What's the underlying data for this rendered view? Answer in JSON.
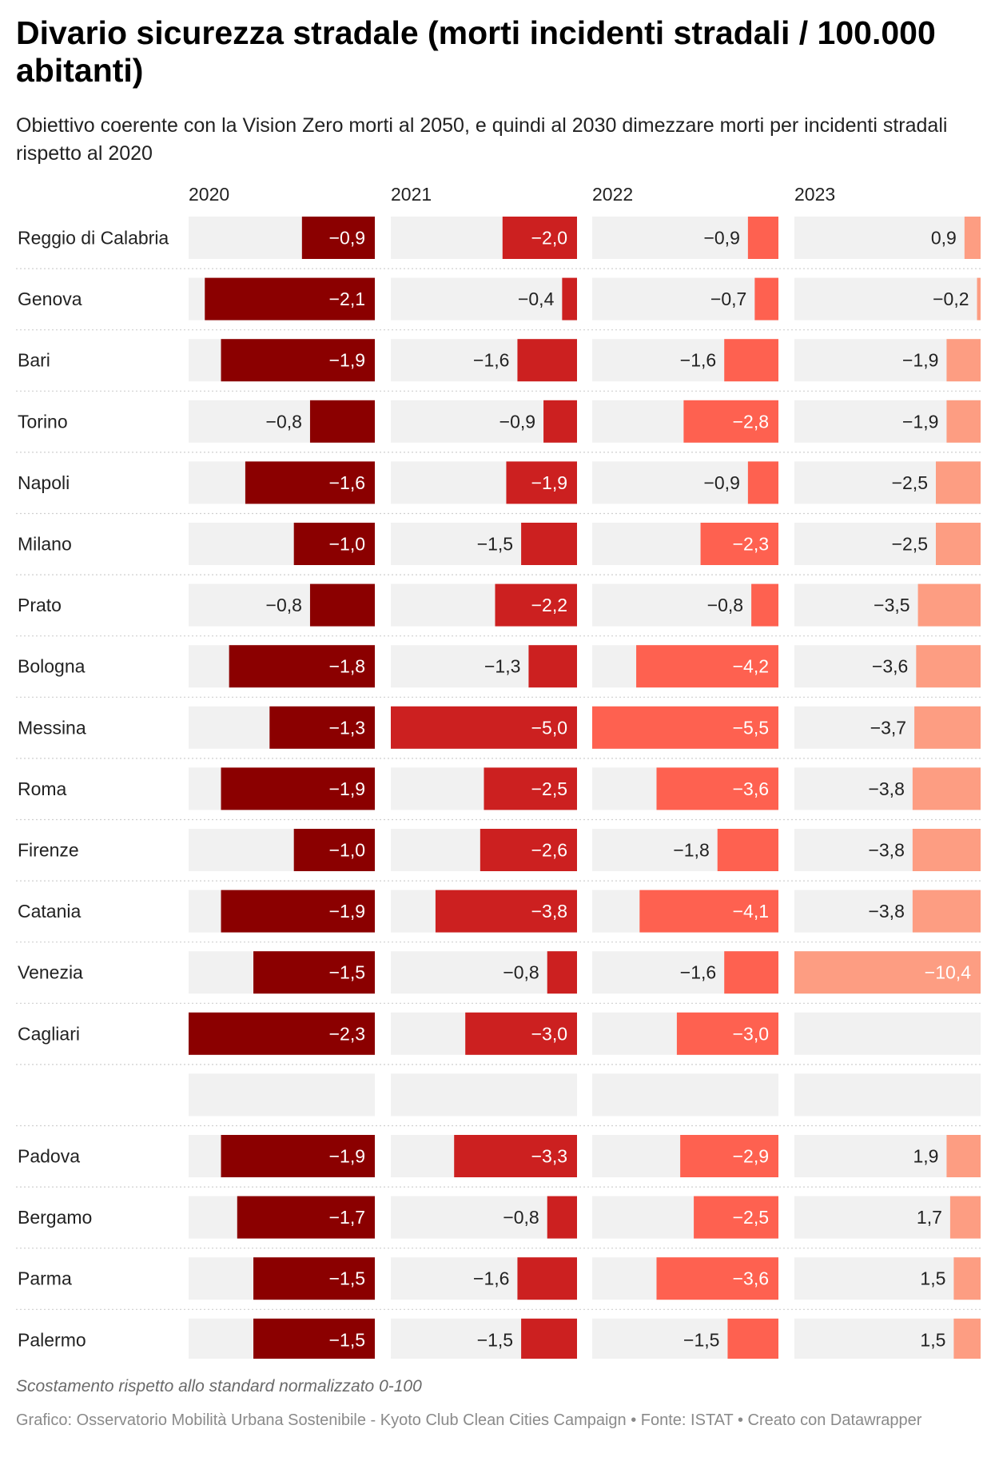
{
  "title": "Divario sicurezza stradale (morti incidenti stradali / 100.000 abitanti)",
  "subtitle": "Obiettivo coerente con la Vision Zero morti al 2050, e quindi al 2030 dimezzare morti per incidenti stradali rispetto al 2020",
  "notes": "Scostamento rispetto allo standard normalizzato 0-100",
  "footer": "Grafico: Osservatorio Mobilità Urbana Sostenibile - Kyoto Club Clean Cities Campaign • Fonte: ISTAT • Creato con Datawrapper",
  "colors": {
    "2020": "#8b0000",
    "2021": "#cc2020",
    "2022": "#fe6150",
    "2023": "#fd9d82",
    "track": "#f1f1f1",
    "separator": "#cfcfcf"
  },
  "chart_data": {
    "type": "bar",
    "columns": [
      "2020",
      "2021",
      "2022",
      "2023"
    ],
    "rows": [
      {
        "label": "Reggio di Calabria",
        "values": [
          -0.9,
          -2.0,
          -0.9,
          0.9
        ]
      },
      {
        "label": "Genova",
        "values": [
          -2.1,
          -0.4,
          -0.7,
          -0.2
        ]
      },
      {
        "label": "Bari",
        "values": [
          -1.9,
          -1.6,
          -1.6,
          -1.9
        ]
      },
      {
        "label": "Torino",
        "values": [
          -0.8,
          -0.9,
          -2.8,
          -1.9
        ]
      },
      {
        "label": "Napoli",
        "values": [
          -1.6,
          -1.9,
          -0.9,
          -2.5
        ]
      },
      {
        "label": "Milano",
        "values": [
          -1.0,
          -1.5,
          -2.3,
          -2.5
        ]
      },
      {
        "label": "Prato",
        "values": [
          -0.8,
          -2.2,
          -0.8,
          -3.5
        ]
      },
      {
        "label": "Bologna",
        "values": [
          -1.8,
          -1.3,
          -4.2,
          -3.6
        ]
      },
      {
        "label": "Messina",
        "values": [
          -1.3,
          -5.0,
          -5.5,
          -3.7
        ]
      },
      {
        "label": "Roma",
        "values": [
          -1.9,
          -2.5,
          -3.6,
          -3.8
        ]
      },
      {
        "label": "Firenze",
        "values": [
          -1.0,
          -2.6,
          -1.8,
          -3.8
        ]
      },
      {
        "label": "Catania",
        "values": [
          -1.9,
          -3.8,
          -4.1,
          -3.8
        ]
      },
      {
        "label": "Venezia",
        "values": [
          -1.5,
          -0.8,
          -1.6,
          -10.4
        ]
      },
      {
        "label": "Cagliari",
        "values": [
          -2.3,
          -3.0,
          -3.0,
          null
        ]
      },
      {
        "label": "",
        "values": [
          null,
          null,
          null,
          null
        ]
      },
      {
        "label": "Padova",
        "values": [
          -1.9,
          -3.3,
          -2.9,
          1.9
        ]
      },
      {
        "label": "Bergamo",
        "values": [
          -1.7,
          -0.8,
          -2.5,
          1.7
        ]
      },
      {
        "label": "Parma",
        "values": [
          -1.5,
          -1.6,
          -3.6,
          1.5
        ]
      },
      {
        "label": "Palermo",
        "values": [
          -1.5,
          -1.5,
          -1.5,
          1.5
        ]
      }
    ],
    "grid": false,
    "legend": "none"
  }
}
